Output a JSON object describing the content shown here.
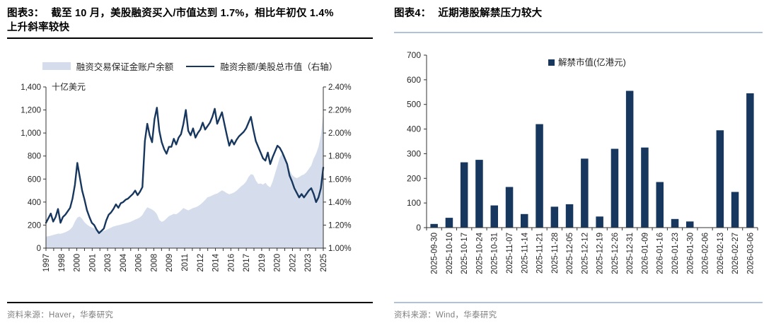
{
  "colors": {
    "navy": "#17375E",
    "area_fill": "#D5DDEC",
    "rule_blue": "#AEC3DA",
    "gray": "#7F7F7F",
    "label": "#262626",
    "axis": "#333333"
  },
  "left_panel": {
    "fig_label": "图表3：",
    "title_rest": "截至 10 月，美股融资买入/市值达到 1.7%，相比年初仅 1.4%",
    "title_line2": "上升斜率较快",
    "source": "资料来源：Haver，华泰研究"
  },
  "right_panel": {
    "fig_label": "图表4：",
    "title_rest": "近期港股解禁压力较大",
    "source": "资料来源：Wind，华泰研究"
  },
  "chart_data": [
    {
      "type": "area+line",
      "title": "截至10月，美股融资买入/市值达到1.7%，相比年初仅1.4%，上升斜率较快",
      "unit_label": "十亿美元",
      "legend_position": "top-center",
      "grid": false,
      "x_interval": "quarterly, 1997Q1–2025Q4",
      "x_tick_labels": [
        "1997",
        "1998",
        "2000",
        "2001",
        "2003",
        "2004",
        "2006",
        "2008",
        "2009",
        "2011",
        "2012",
        "2014",
        "2016",
        "2017",
        "2019",
        "2020",
        "2022",
        "2023",
        "2025"
      ],
      "left_axis": {
        "min": 0,
        "max": 1400,
        "step": 200,
        "tick_labels": [
          "0",
          "200",
          "400",
          "600",
          "800",
          "1,000",
          "1,200",
          "1,400"
        ]
      },
      "right_axis": {
        "min": 1.0,
        "max": 2.4,
        "step": 0.2,
        "tick_labels": [
          "1.00%",
          "1.20%",
          "1.40%",
          "1.60%",
          "1.80%",
          "2.00%",
          "2.20%",
          "2.40%"
        ]
      },
      "series": [
        {
          "name": "融资交易保证金账户余额",
          "type": "area",
          "axis": "left",
          "values": [
            100,
            104,
            108,
            114,
            120,
            126,
            124,
            130,
            138,
            148,
            162,
            185,
            230,
            265,
            275,
            255,
            225,
            205,
            190,
            180,
            172,
            162,
            152,
            146,
            150,
            158,
            168,
            178,
            188,
            194,
            199,
            204,
            210,
            216,
            221,
            228,
            238,
            248,
            256,
            268,
            288,
            325,
            355,
            345,
            335,
            320,
            295,
            245,
            228,
            238,
            258,
            278,
            288,
            298,
            294,
            308,
            328,
            348,
            338,
            328,
            338,
            348,
            354,
            364,
            378,
            398,
            418,
            442,
            448,
            458,
            468,
            474,
            488,
            502,
            492,
            478,
            468,
            474,
            484,
            498,
            518,
            538,
            554,
            578,
            618,
            642,
            636,
            588,
            558,
            562,
            552,
            568,
            542,
            528,
            578,
            648,
            718,
            788,
            825,
            805,
            748,
            678,
            638,
            618,
            608,
            618,
            632,
            640,
            658,
            688,
            718,
            778,
            820,
            880,
            980,
            1180
          ]
        },
        {
          "name": "融资余额/美股总市值（右轴）",
          "type": "line",
          "axis": "right",
          "values": [
            1.22,
            1.26,
            1.3,
            1.23,
            1.27,
            1.34,
            1.22,
            1.27,
            1.29,
            1.32,
            1.35,
            1.43,
            1.55,
            1.74,
            1.62,
            1.5,
            1.42,
            1.33,
            1.27,
            1.22,
            1.2,
            1.16,
            1.13,
            1.15,
            1.17,
            1.24,
            1.29,
            1.31,
            1.34,
            1.38,
            1.35,
            1.39,
            1.4,
            1.42,
            1.43,
            1.45,
            1.47,
            1.5,
            1.46,
            1.49,
            1.53,
            1.93,
            2.08,
            1.98,
            1.92,
            2.12,
            2.22,
            2.02,
            1.92,
            1.86,
            1.82,
            1.88,
            1.88,
            1.95,
            1.9,
            1.96,
            1.99,
            2.08,
            2.2,
            2.02,
            1.98,
            2.04,
            1.96,
            2.0,
            2.03,
            2.09,
            2.03,
            2.06,
            2.09,
            2.14,
            2.21,
            2.08,
            2.13,
            2.18,
            2.08,
            1.98,
            1.89,
            1.94,
            1.9,
            1.94,
            1.97,
            1.99,
            2.01,
            2.04,
            2.09,
            2.14,
            2.03,
            1.93,
            1.88,
            1.83,
            1.78,
            1.76,
            1.83,
            1.73,
            1.79,
            1.84,
            1.89,
            1.87,
            1.83,
            1.78,
            1.73,
            1.63,
            1.58,
            1.52,
            1.48,
            1.44,
            1.47,
            1.44,
            1.47,
            1.5,
            1.52,
            1.47,
            1.4,
            1.44,
            1.52,
            1.7
          ]
        }
      ]
    },
    {
      "type": "bar",
      "title": "近期港股解禁压力较大",
      "legend": "解禁市值(亿港元)",
      "legend_position": "top-center",
      "grid": false,
      "ylim": [
        0,
        700
      ],
      "ystep": 100,
      "y_tick_labels": [
        "0",
        "100",
        "200",
        "300",
        "400",
        "500",
        "600",
        "700"
      ],
      "categories": [
        "2025-09-30",
        "2025-10-10",
        "2025-10-17",
        "2025-10-24",
        "2025-10-31",
        "2025-11-07",
        "2025-11-14",
        "2025-11-21",
        "2025-11-28",
        "2025-12-05",
        "2025-12-12",
        "2025-12-19",
        "2025-12-26",
        "2025-12-31",
        "2026-01-09",
        "2026-01-16",
        "2026-01-23",
        "2026-01-30",
        "2026-02-06",
        "2026-02-13",
        "2026-02-27",
        "2026-03-06"
      ],
      "values": [
        15,
        40,
        265,
        275,
        90,
        165,
        55,
        420,
        85,
        95,
        280,
        45,
        320,
        555,
        325,
        185,
        35,
        25,
        0,
        395,
        145,
        545
      ]
    }
  ]
}
